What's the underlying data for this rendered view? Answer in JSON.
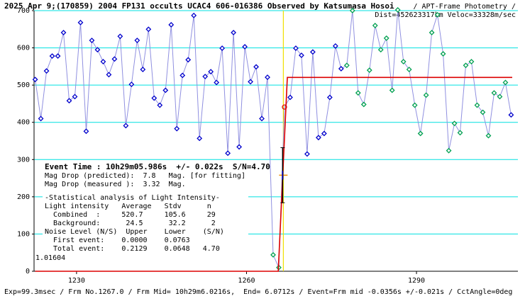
{
  "chart_data": {
    "type": "line",
    "title": "2025 Apr 9;(170859) 2004 FP131 occults UCAC4 606-016386 Observed by Katsumasa Hosoi",
    "subtitle": "/ APT-Frame Photometry /",
    "subtitle2": "Dist=452623317km Veloc=33328m/sec",
    "footer": "Exp=99.3msec / Frm No.1267.0 / Frm Mid= 10h29m6.0216s,  End= 6.0712s / Event=Frm mid -0.0356s +/-0.021s / CctAngle=0deg",
    "info": [
      "Event Time : 10h29m05.986s  +/- 0.022s  S/N=4.70",
      "Mag Drop (predicted):  7.8   Mag. [for fitting]",
      "Mag Drop (measured ):  3.32  Mag.",
      "-Statistical analysis of Light Intensity-",
      "Light intensity   Average   Stdv      n",
      "  Combined  :     520.7     105.6     29",
      "  Background:      24.5      32.2      2",
      "Noise Level (N/S)  Upper    Lower    (S/N)",
      "  First event:    0.0000    0.0763",
      "  Total event:    0.2129    0.0648   4.70",
      "1.01604"
    ],
    "xlim": [
      1222.5,
      1307.9
    ],
    "ylim": [
      0,
      700
    ],
    "xticks": [
      1230,
      1260,
      1290
    ],
    "yticks": [
      0,
      100,
      200,
      300,
      400,
      500,
      600,
      700
    ],
    "grid": true,
    "grid_color": "#00e0e0",
    "x": [
      1222.7,
      1223.7,
      1224.7,
      1225.7,
      1226.7,
      1227.7,
      1228.7,
      1229.7,
      1230.7,
      1231.7,
      1232.7,
      1233.7,
      1234.7,
      1235.7,
      1236.7,
      1237.7,
      1238.7,
      1239.7,
      1240.7,
      1241.7,
      1242.7,
      1243.7,
      1244.7,
      1245.7,
      1246.7,
      1247.7,
      1248.7,
      1249.7,
      1250.7,
      1251.7,
      1252.7,
      1253.7,
      1254.7,
      1255.7,
      1256.7,
      1257.7,
      1258.7,
      1259.7,
      1260.7,
      1261.7,
      1262.7,
      1263.7,
      1264.7,
      1265.7,
      1266.7,
      1267.7,
      1268.7,
      1269.7,
      1270.7,
      1271.7,
      1272.7,
      1273.7,
      1274.7,
      1275.7,
      1276.7,
      1277.7,
      1278.7,
      1279.7,
      1280.7,
      1281.7,
      1282.7,
      1283.7,
      1284.7,
      1285.7,
      1286.7,
      1287.7,
      1288.7,
      1289.7,
      1290.7,
      1291.7,
      1292.7,
      1293.7,
      1294.7,
      1295.7,
      1296.7,
      1297.7,
      1298.7,
      1299.7,
      1300.7,
      1301.7,
      1302.7,
      1303.7,
      1304.7,
      1305.7,
      1306.7
    ],
    "series": [
      {
        "color": "#9090e0",
        "values": [
          515,
          410,
          538,
          578,
          578,
          641,
          458,
          469,
          668,
          376,
          620,
          595,
          563,
          528,
          570,
          631,
          391,
          502,
          620,
          542,
          650,
          465,
          446,
          486,
          662,
          383,
          526,
          568,
          687,
          357,
          523,
          536,
          507,
          599,
          317,
          641,
          334,
          603,
          509,
          549,
          410,
          521,
          44,
          10,
          441,
          467,
          599,
          580,
          315,
          589,
          359,
          370,
          467,
          605,
          544,
          553,
          700,
          479,
          448,
          540,
          660,
          595,
          626,
          486,
          702,
          563,
          542,
          446,
          370,
          473,
          641,
          689,
          584,
          324,
          397,
          372,
          553,
          563,
          446,
          427,
          364,
          479,
          469,
          507,
          420
        ],
        "marker_colors": [
          "#0000cc",
          "#0000cc",
          "#0000cc",
          "#0000cc",
          "#0000cc",
          "#0000cc",
          "#0000cc",
          "#0000cc",
          "#0000cc",
          "#0000cc",
          "#0000cc",
          "#0000cc",
          "#0000cc",
          "#0000cc",
          "#0000cc",
          "#0000cc",
          "#0000cc",
          "#0000cc",
          "#0000cc",
          "#0000cc",
          "#0000cc",
          "#0000cc",
          "#0000cc",
          "#0000cc",
          "#0000cc",
          "#0000cc",
          "#0000cc",
          "#0000cc",
          "#0000cc",
          "#0000cc",
          "#0000cc",
          "#0000cc",
          "#0000cc",
          "#0000cc",
          "#0000cc",
          "#0000cc",
          "#0000cc",
          "#0000cc",
          "#0000cc",
          "#0000cc",
          "#0000cc",
          "#0000cc",
          "#00a050",
          "#00a050",
          "#dd0000",
          "#0000cc",
          "#0000cc",
          "#0000cc",
          "#0000cc",
          "#0000cc",
          "#0000cc",
          "#0000cc",
          "#0000cc",
          "#0000cc",
          "#0000cc",
          "#00a050",
          "#00a050",
          "#00a050",
          "#00a050",
          "#00a050",
          "#00a050",
          "#00a050",
          "#00a050",
          "#00a050",
          "#00a050",
          "#00a050",
          "#00a050",
          "#00a050",
          "#00a050",
          "#00a050",
          "#00a050",
          "#00a050",
          "#00a050",
          "#00a050",
          "#00a050",
          "#00a050",
          "#00a050",
          "#00a050",
          "#00a050",
          "#00a050",
          "#00a050",
          "#00a050",
          "#00a050",
          "#00a050",
          "#0000cc"
        ]
      }
    ],
    "model": {
      "color": "#dd0000",
      "x": [
        1222.7,
        1265.6,
        1267.2,
        1306.9
      ],
      "values": [
        0,
        0,
        520.7,
        520.7
      ]
    },
    "event": {
      "color": "#f0e000",
      "frame": 1266.5,
      "level": 258,
      "error": 74
    }
  }
}
